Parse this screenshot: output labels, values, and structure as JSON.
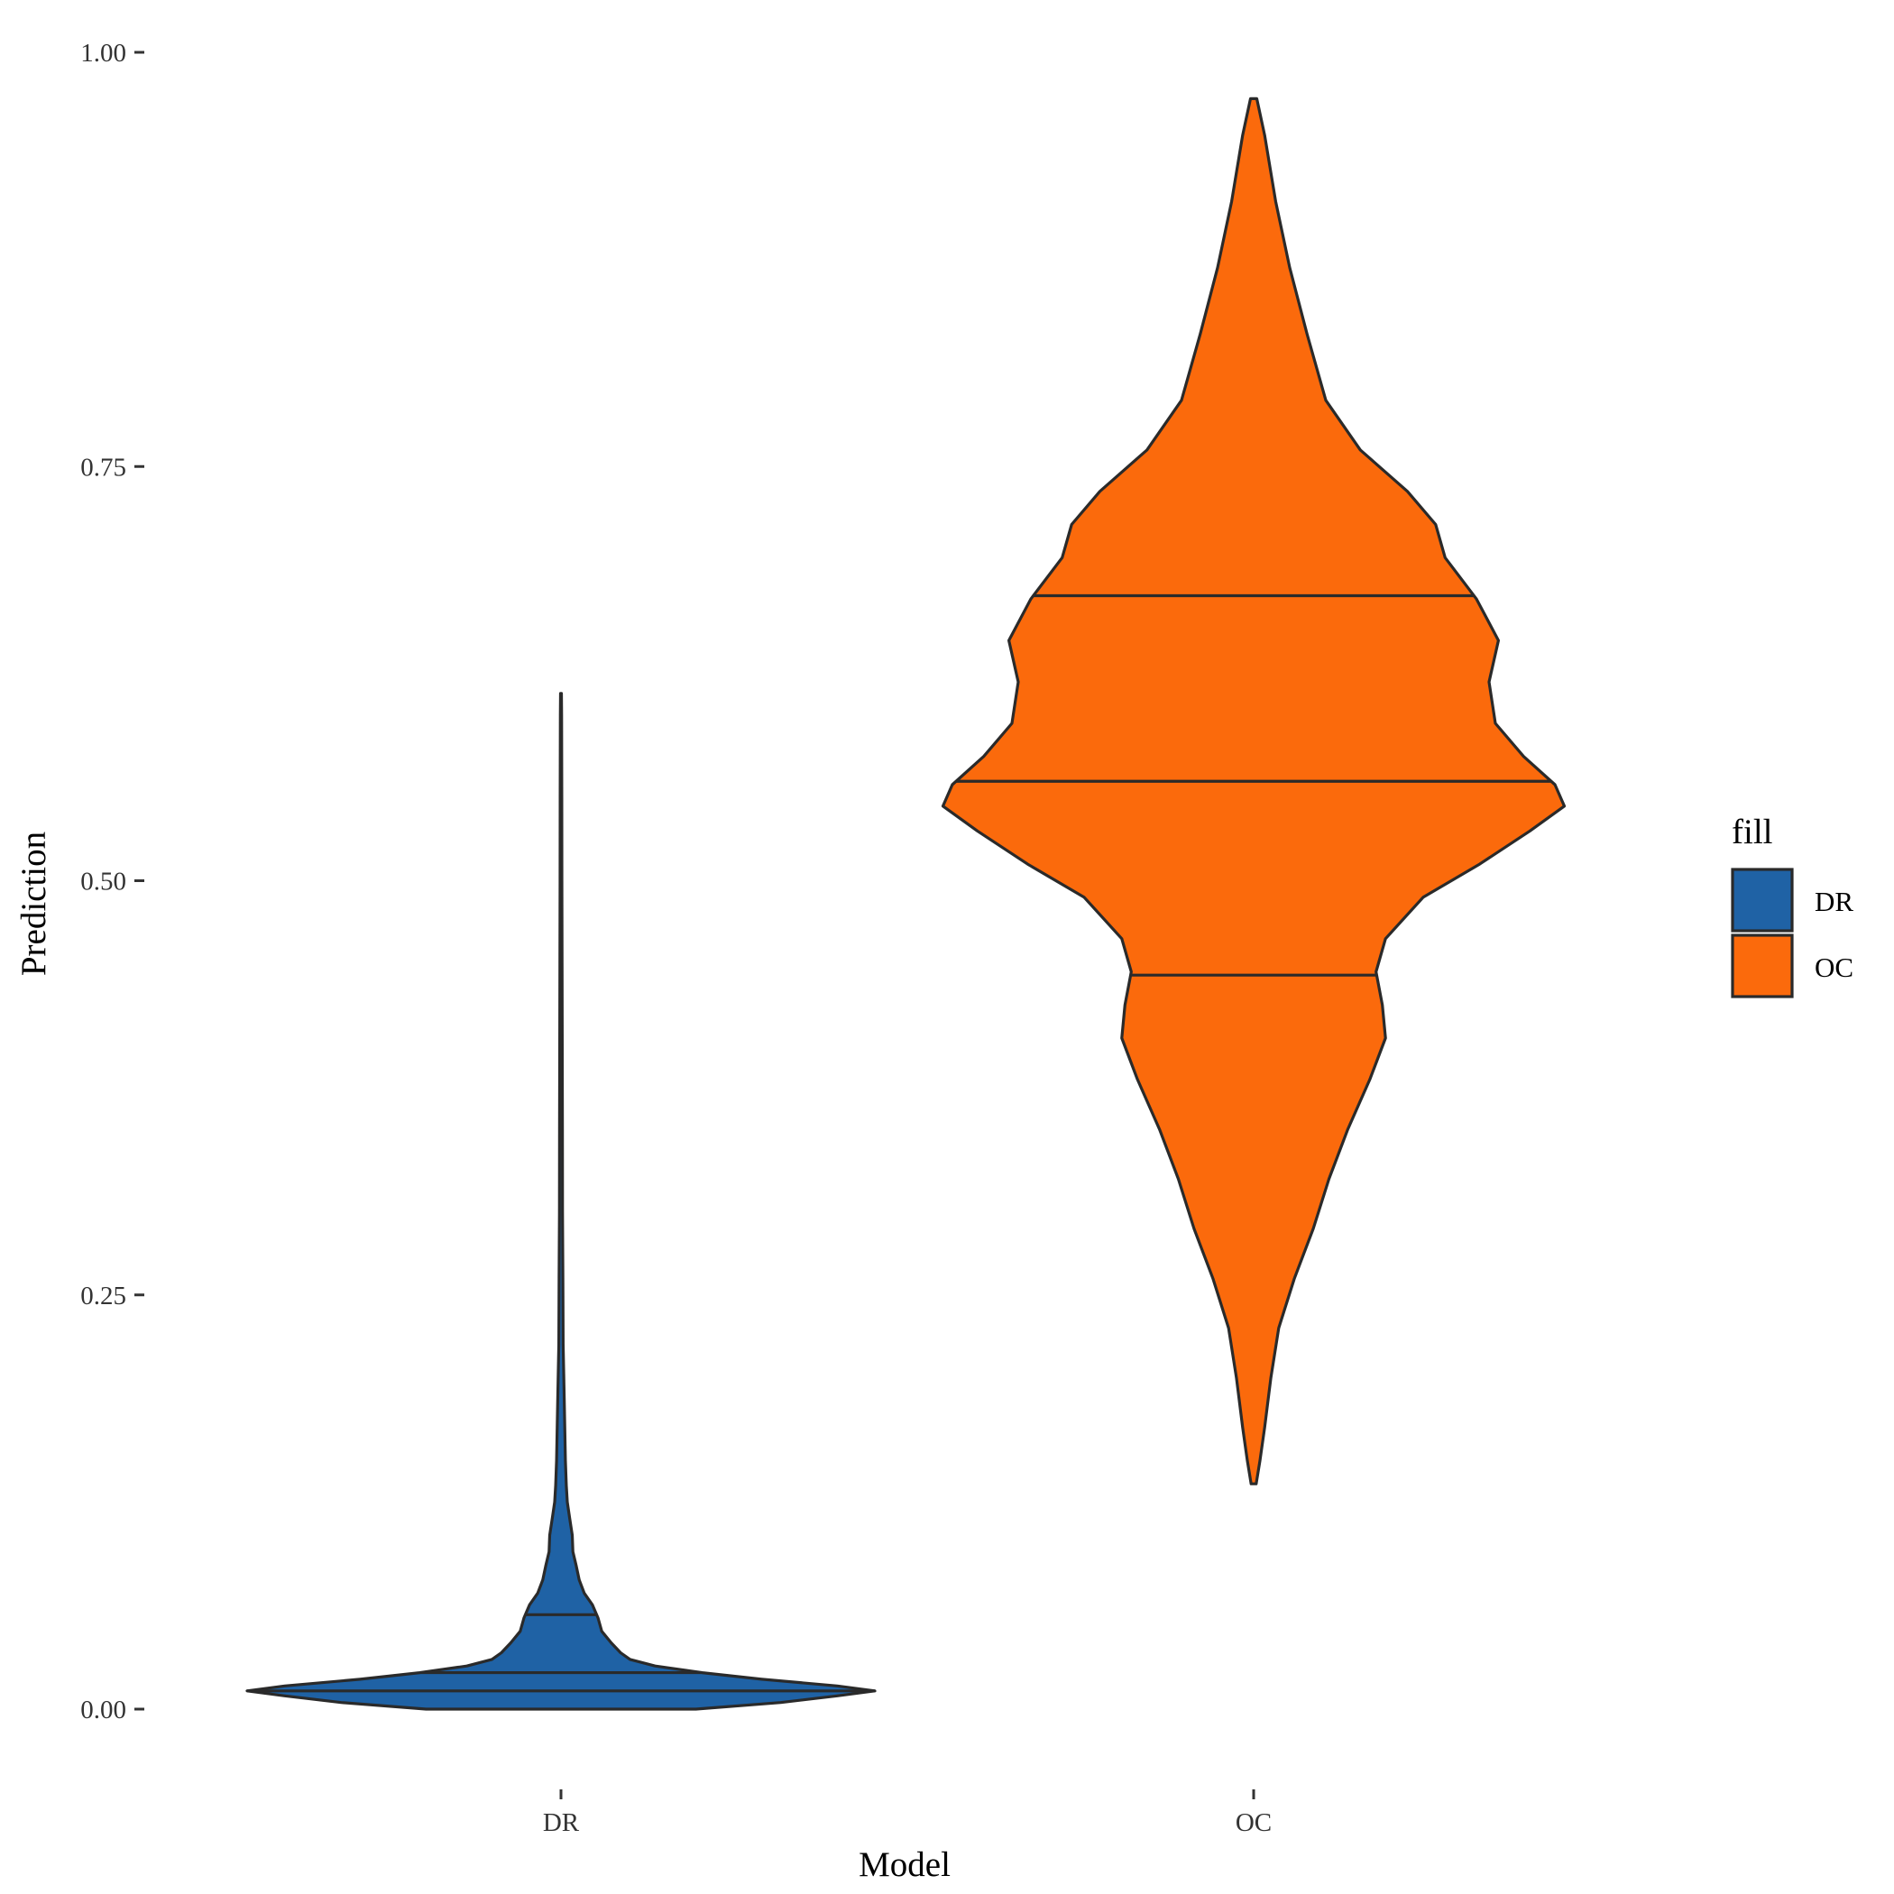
{
  "chart_data": {
    "type": "violin",
    "xlabel": "Model",
    "ylabel": "Prediction",
    "ylim": [
      0,
      1
    ],
    "y_ticks": [
      "0.00",
      "0.25",
      "0.50",
      "0.75",
      "1.00"
    ],
    "y_tick_values": [
      0,
      0.25,
      0.5,
      0.75,
      1
    ],
    "categories": [
      "DR",
      "OC"
    ],
    "grid": false,
    "legend": {
      "title": "fill",
      "position": "right",
      "entries": [
        "DR",
        "OC"
      ]
    },
    "colors": {
      "DR": "#1f62a5",
      "OC": "#fb6a0c",
      "outline": "#2a2a2a"
    },
    "series": [
      {
        "name": "DR",
        "min": 0.0,
        "max": 0.613,
        "quantiles": {
          "q25": 0.011,
          "q50": 0.022,
          "q75": 0.057
        },
        "density_profile": [
          [
            0.0,
            0.43
          ],
          [
            0.004,
            0.7
          ],
          [
            0.008,
            0.88
          ],
          [
            0.011,
            1.0
          ],
          [
            0.014,
            0.88
          ],
          [
            0.018,
            0.64
          ],
          [
            0.022,
            0.45
          ],
          [
            0.026,
            0.3
          ],
          [
            0.03,
            0.22
          ],
          [
            0.034,
            0.19
          ],
          [
            0.04,
            0.16
          ],
          [
            0.047,
            0.13
          ],
          [
            0.055,
            0.118
          ],
          [
            0.063,
            0.1
          ],
          [
            0.07,
            0.074
          ],
          [
            0.078,
            0.058
          ],
          [
            0.087,
            0.048
          ],
          [
            0.095,
            0.038
          ],
          [
            0.105,
            0.036
          ],
          [
            0.115,
            0.028
          ],
          [
            0.125,
            0.02
          ],
          [
            0.135,
            0.017
          ],
          [
            0.15,
            0.014
          ],
          [
            0.17,
            0.012
          ],
          [
            0.19,
            0.01
          ],
          [
            0.22,
            0.007
          ],
          [
            0.26,
            0.006
          ],
          [
            0.3,
            0.005
          ],
          [
            0.35,
            0.0045
          ],
          [
            0.4,
            0.004
          ],
          [
            0.45,
            0.0035
          ],
          [
            0.5,
            0.003
          ],
          [
            0.55,
            0.0025
          ],
          [
            0.6,
            0.002
          ],
          [
            0.613,
            0.0015
          ]
        ]
      },
      {
        "name": "OC",
        "min": 0.136,
        "max": 0.972,
        "quantiles": {
          "q25": 0.443,
          "q50": 0.56,
          "q75": 0.672
        },
        "density_profile": [
          [
            0.136,
            0.008
          ],
          [
            0.15,
            0.02
          ],
          [
            0.17,
            0.035
          ],
          [
            0.2,
            0.055
          ],
          [
            0.23,
            0.08
          ],
          [
            0.26,
            0.13
          ],
          [
            0.29,
            0.19
          ],
          [
            0.32,
            0.24
          ],
          [
            0.35,
            0.3
          ],
          [
            0.38,
            0.37
          ],
          [
            0.405,
            0.42
          ],
          [
            0.425,
            0.41
          ],
          [
            0.445,
            0.39
          ],
          [
            0.465,
            0.42
          ],
          [
            0.49,
            0.54
          ],
          [
            0.51,
            0.72
          ],
          [
            0.53,
            0.88
          ],
          [
            0.545,
            0.99
          ],
          [
            0.558,
            0.96
          ],
          [
            0.575,
            0.86
          ],
          [
            0.595,
            0.77
          ],
          [
            0.62,
            0.75
          ],
          [
            0.645,
            0.78
          ],
          [
            0.67,
            0.71
          ],
          [
            0.695,
            0.61
          ],
          [
            0.715,
            0.58
          ],
          [
            0.735,
            0.49
          ],
          [
            0.76,
            0.34
          ],
          [
            0.79,
            0.23
          ],
          [
            0.83,
            0.17
          ],
          [
            0.87,
            0.115
          ],
          [
            0.91,
            0.07
          ],
          [
            0.95,
            0.035
          ],
          [
            0.972,
            0.01
          ]
        ]
      }
    ]
  }
}
